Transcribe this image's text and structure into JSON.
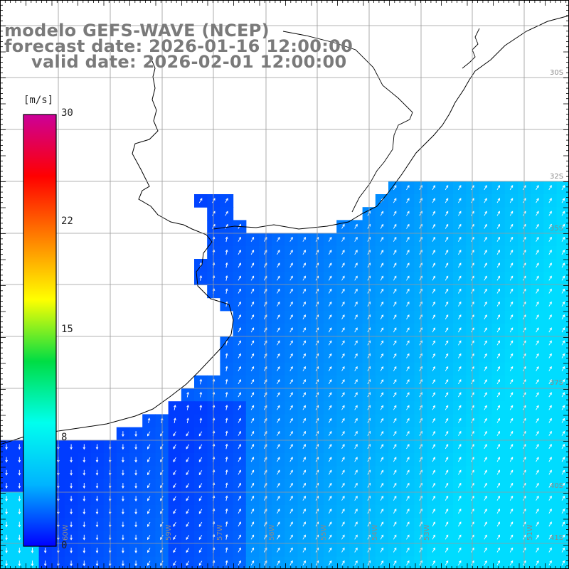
{
  "title": {
    "line1": "modelo GEFS-WAVE (NCEP)",
    "line2": "forecast date: 2026-01-16 12:00:00",
    "line3": "valid date: 2026-02-01 12:00:00"
  },
  "colorbar": {
    "unit": "[m/s]",
    "ticks": [
      "30",
      "22",
      "15",
      "8",
      "0"
    ],
    "stops": [
      "#0000ff",
      "#00b4ff",
      "#00ffee",
      "#00dd44",
      "#ffff00",
      "#ff8000",
      "#ff0000",
      "#cc0099"
    ]
  },
  "grid": {
    "lat_labels": [
      "30S",
      "32S",
      "35S",
      "37S",
      "40S",
      "41S"
    ],
    "lon_labels": [
      "60W",
      "59W",
      "57W",
      "56W",
      "55W",
      "54W",
      "53W",
      "51W"
    ]
  },
  "colors": {
    "land": "#ffffff",
    "grid": "#9a9a9a",
    "coast": "#000000",
    "title": "#7a7a7a"
  }
}
